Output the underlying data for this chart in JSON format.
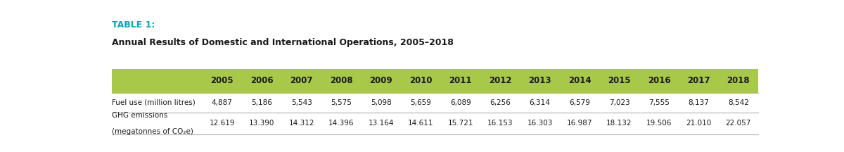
{
  "table1_label": "TABLE 1:",
  "subtitle": "Annual Results of Domestic and International Operations, 2005–2018",
  "years": [
    "2005",
    "2006",
    "2007",
    "2008",
    "2009",
    "2010",
    "2011",
    "2012",
    "2013",
    "2014",
    "2015",
    "2016",
    "2017",
    "2018"
  ],
  "header_bg": "#a8c84a",
  "header_text_color": "#1a1a1a",
  "row1_label": "Fuel use (million litres)",
  "row1_values": [
    "4,887",
    "5,186",
    "5,543",
    "5,575",
    "5,098",
    "5,659",
    "6,089",
    "6,256",
    "6,314",
    "6,579",
    "7,023",
    "7,555",
    "8,137",
    "8,542"
  ],
  "row2_label_line1": "GHG emissions",
  "row2_label_line2": "(megatonnes of CO₂e)",
  "row2_values": [
    "12.619",
    "13.390",
    "14.312",
    "14.396",
    "13.164",
    "14.611",
    "15.721",
    "16.153",
    "16.303",
    "16.987",
    "18.132",
    "19.506",
    "21.010",
    "22.057"
  ],
  "table1_color": "#00aabb",
  "subtitle_color": "#1a1a1a",
  "bg_color": "#ffffff",
  "data_fontsize": 7.5,
  "header_fontsize": 8.5,
  "row_label_fontsize": 7.5
}
